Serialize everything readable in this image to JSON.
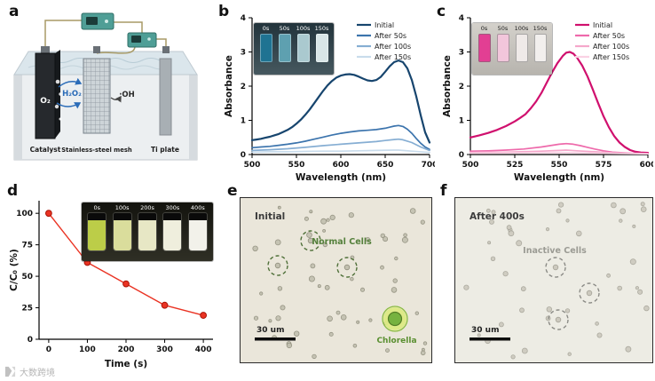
{
  "watermark": {
    "text": "大数跨境"
  },
  "panels": {
    "a": {
      "label": "a",
      "o2": "O₂",
      "h2o2": "H₂O₂",
      "oh": "·OH",
      "catalyst": "Catalyst",
      "mesh": "Stainless-steel mesh",
      "ti": "Ti plate"
    },
    "b": {
      "label": "b",
      "inset": {
        "labels": [
          "0s",
          "50s",
          "100s",
          "150s"
        ],
        "colors": [
          "#1f7392",
          "#5ea0b0",
          "#aac9cf",
          "#d9e6e7"
        ]
      }
    },
    "c": {
      "label": "c",
      "inset": {
        "labels": [
          "0s",
          "50s",
          "100s",
          "150s"
        ],
        "colors": [
          "#e23f93",
          "#f2c6db",
          "#efeae8",
          "#f2efed"
        ]
      }
    },
    "d": {
      "label": "d",
      "inset": {
        "labels": [
          "0s",
          "100s",
          "200s",
          "300s",
          "400s"
        ],
        "colors": [
          "#bccd48",
          "#dadd9c",
          "#e7e7c5",
          "#efeedd",
          "#f2f1ea"
        ]
      }
    },
    "e": {
      "label": "e",
      "title": "Initial",
      "annotation": "Normal Cells",
      "special": "Chlorella",
      "scalebar": "30 um"
    },
    "f": {
      "label": "f",
      "title": "After 400s",
      "annotation": "Inactive Cells",
      "scalebar": "30 um"
    }
  },
  "chart_data": [
    {
      "id": "b",
      "type": "line",
      "title": "",
      "xlabel": "Wavelength (nm)",
      "ylabel": "Absorbance",
      "xlim": [
        500,
        700
      ],
      "ylim": [
        0,
        4
      ],
      "xticks": [
        500,
        550,
        600,
        650,
        700
      ],
      "yticks": [
        0,
        1,
        2,
        3,
        4
      ],
      "show_legend": true,
      "legend_position": "top-right",
      "margins": {
        "l": 34,
        "r": 6,
        "t": 8,
        "b": 34
      },
      "series": [
        {
          "name": "Initial",
          "color": "#17456e",
          "width": 2.2,
          "points": [
            [
              500,
              0.42
            ],
            [
              505,
              0.44
            ],
            [
              510,
              0.46
            ],
            [
              515,
              0.49
            ],
            [
              520,
              0.52
            ],
            [
              525,
              0.56
            ],
            [
              530,
              0.6
            ],
            [
              535,
              0.66
            ],
            [
              540,
              0.72
            ],
            [
              545,
              0.8
            ],
            [
              550,
              0.9
            ],
            [
              555,
              1.02
            ],
            [
              560,
              1.16
            ],
            [
              565,
              1.32
            ],
            [
              570,
              1.5
            ],
            [
              575,
              1.68
            ],
            [
              580,
              1.86
            ],
            [
              585,
              2.02
            ],
            [
              590,
              2.15
            ],
            [
              595,
              2.25
            ],
            [
              600,
              2.31
            ],
            [
              605,
              2.34
            ],
            [
              610,
              2.35
            ],
            [
              615,
              2.33
            ],
            [
              620,
              2.28
            ],
            [
              625,
              2.22
            ],
            [
              630,
              2.17
            ],
            [
              635,
              2.15
            ],
            [
              640,
              2.18
            ],
            [
              645,
              2.27
            ],
            [
              650,
              2.42
            ],
            [
              655,
              2.58
            ],
            [
              660,
              2.7
            ],
            [
              665,
              2.75
            ],
            [
              670,
              2.7
            ],
            [
              675,
              2.52
            ],
            [
              680,
              2.18
            ],
            [
              685,
              1.7
            ],
            [
              690,
              1.15
            ],
            [
              695,
              0.65
            ],
            [
              700,
              0.35
            ]
          ]
        },
        {
          "name": "After 50s",
          "color": "#3c74ad",
          "width": 1.7,
          "points": [
            [
              500,
              0.2
            ],
            [
              510,
              0.22
            ],
            [
              520,
              0.24
            ],
            [
              530,
              0.27
            ],
            [
              540,
              0.3
            ],
            [
              550,
              0.34
            ],
            [
              560,
              0.39
            ],
            [
              570,
              0.45
            ],
            [
              580,
              0.51
            ],
            [
              590,
              0.57
            ],
            [
              600,
              0.62
            ],
            [
              610,
              0.66
            ],
            [
              620,
              0.69
            ],
            [
              630,
              0.71
            ],
            [
              640,
              0.73
            ],
            [
              650,
              0.77
            ],
            [
              655,
              0.8
            ],
            [
              660,
              0.83
            ],
            [
              665,
              0.85
            ],
            [
              670,
              0.82
            ],
            [
              675,
              0.74
            ],
            [
              680,
              0.62
            ],
            [
              685,
              0.47
            ],
            [
              690,
              0.33
            ],
            [
              695,
              0.22
            ],
            [
              700,
              0.15
            ]
          ]
        },
        {
          "name": "After 100s",
          "color": "#86aed3",
          "width": 1.7,
          "points": [
            [
              500,
              0.12
            ],
            [
              520,
              0.14
            ],
            [
              540,
              0.17
            ],
            [
              560,
              0.21
            ],
            [
              580,
              0.26
            ],
            [
              600,
              0.3
            ],
            [
              620,
              0.34
            ],
            [
              640,
              0.38
            ],
            [
              650,
              0.41
            ],
            [
              660,
              0.44
            ],
            [
              665,
              0.45
            ],
            [
              670,
              0.43
            ],
            [
              680,
              0.35
            ],
            [
              690,
              0.22
            ],
            [
              700,
              0.12
            ]
          ]
        },
        {
          "name": "After 150s",
          "color": "#c9dcec",
          "width": 1.7,
          "points": [
            [
              500,
              0.07
            ],
            [
              520,
              0.08
            ],
            [
              540,
              0.08
            ],
            [
              560,
              0.09
            ],
            [
              580,
              0.1
            ],
            [
              600,
              0.1
            ],
            [
              620,
              0.11
            ],
            [
              640,
              0.12
            ],
            [
              660,
              0.13
            ],
            [
              665,
              0.13
            ],
            [
              680,
              0.1
            ],
            [
              700,
              0.06
            ]
          ]
        }
      ]
    },
    {
      "id": "c",
      "type": "line",
      "title": "",
      "xlabel": "Wavelength (nm)",
      "ylabel": "Absorbance",
      "xlim": [
        500,
        600
      ],
      "ylim": [
        0,
        4
      ],
      "xticks": [
        500,
        525,
        550,
        575,
        600
      ],
      "yticks": [
        0,
        1,
        2,
        3,
        4
      ],
      "show_legend": true,
      "legend_position": "top-right",
      "margins": {
        "l": 34,
        "r": 6,
        "t": 8,
        "b": 34
      },
      "series": [
        {
          "name": "Initial",
          "color": "#d0106e",
          "width": 2.2,
          "points": [
            [
              500,
              0.5
            ],
            [
              505,
              0.56
            ],
            [
              510,
              0.63
            ],
            [
              515,
              0.72
            ],
            [
              520,
              0.83
            ],
            [
              525,
              0.97
            ],
            [
              528,
              1.07
            ],
            [
              531,
              1.18
            ],
            [
              534,
              1.35
            ],
            [
              537,
              1.55
            ],
            [
              540,
              1.8
            ],
            [
              543,
              2.1
            ],
            [
              546,
              2.4
            ],
            [
              549,
              2.67
            ],
            [
              552,
              2.88
            ],
            [
              554,
              2.98
            ],
            [
              556,
              3.0
            ],
            [
              558,
              2.95
            ],
            [
              560,
              2.84
            ],
            [
              563,
              2.6
            ],
            [
              566,
              2.28
            ],
            [
              569,
              1.9
            ],
            [
              572,
              1.5
            ],
            [
              575,
              1.12
            ],
            [
              578,
              0.8
            ],
            [
              581,
              0.54
            ],
            [
              584,
              0.35
            ],
            [
              587,
              0.22
            ],
            [
              590,
              0.13
            ],
            [
              593,
              0.08
            ],
            [
              596,
              0.06
            ],
            [
              600,
              0.05
            ]
          ]
        },
        {
          "name": "After 50s",
          "color": "#ee6aab",
          "width": 1.7,
          "points": [
            [
              500,
              0.1
            ],
            [
              510,
              0.11
            ],
            [
              520,
              0.13
            ],
            [
              530,
              0.16
            ],
            [
              540,
              0.22
            ],
            [
              546,
              0.27
            ],
            [
              550,
              0.3
            ],
            [
              554,
              0.32
            ],
            [
              558,
              0.3
            ],
            [
              562,
              0.26
            ],
            [
              566,
              0.21
            ],
            [
              570,
              0.16
            ],
            [
              575,
              0.11
            ],
            [
              580,
              0.07
            ],
            [
              590,
              0.04
            ],
            [
              600,
              0.03
            ]
          ]
        },
        {
          "name": "After 100s",
          "color": "#f5a8cb",
          "width": 1.7,
          "points": [
            [
              500,
              0.06
            ],
            [
              520,
              0.07
            ],
            [
              540,
              0.1
            ],
            [
              550,
              0.12
            ],
            [
              554,
              0.13
            ],
            [
              560,
              0.11
            ],
            [
              570,
              0.08
            ],
            [
              580,
              0.05
            ],
            [
              600,
              0.02
            ]
          ]
        },
        {
          "name": "After 150s",
          "color": "#fad2e4",
          "width": 1.7,
          "points": [
            [
              500,
              0.04
            ],
            [
              530,
              0.05
            ],
            [
              554,
              0.06
            ],
            [
              570,
              0.04
            ],
            [
              600,
              0.02
            ]
          ]
        }
      ]
    },
    {
      "id": "d",
      "type": "line",
      "title": "",
      "xlabel": "Time (s)",
      "ylabel": "C/C₀ (%)",
      "xlim": [
        -25,
        425
      ],
      "ylim": [
        0,
        110
      ],
      "xticks": [
        0,
        100,
        200,
        300,
        400
      ],
      "yticks": [
        0,
        25,
        50,
        75,
        100
      ],
      "show_legend": false,
      "margins": {
        "l": 36,
        "r": 10,
        "t": 10,
        "b": 36
      },
      "series": [
        {
          "name": "C/C₀",
          "color": "#ea3323",
          "width": 1.4,
          "marker": true,
          "marker_edge": "#a81408",
          "points": [
            [
              0,
              100
            ],
            [
              100,
              61
            ],
            [
              200,
              44
            ],
            [
              300,
              27
            ],
            [
              400,
              19
            ]
          ]
        }
      ]
    }
  ]
}
